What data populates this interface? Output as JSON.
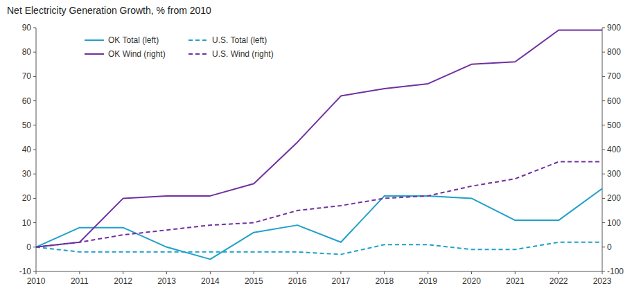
{
  "chart_data": {
    "type": "line",
    "title": "Net Electricity Generation Growth, % from 2010",
    "x": [
      2010,
      2011,
      2012,
      2013,
      2014,
      2015,
      2016,
      2017,
      2018,
      2019,
      2020,
      2021,
      2022,
      2023
    ],
    "xlim": [
      2010,
      2023
    ],
    "xticks": [
      2010,
      2011,
      2012,
      2013,
      2014,
      2015,
      2016,
      2017,
      2018,
      2019,
      2020,
      2021,
      2022,
      2023
    ],
    "series": [
      {
        "name": "OK Total (left)",
        "color": "#1fa0c8",
        "line_style": "solid",
        "axis": "y",
        "values": [
          0,
          8,
          8,
          0,
          -5,
          6,
          9,
          2,
          21,
          21,
          20,
          11,
          11,
          24
        ]
      },
      {
        "name": "U.S. Total (left)",
        "color": "#1fa0c8",
        "line_style": "dashed",
        "axis": "y",
        "values": [
          0,
          -2,
          -2,
          -2,
          -2,
          -2,
          -2,
          -3,
          1,
          1,
          -1,
          -1,
          2,
          2
        ]
      },
      {
        "name": "OK Wind (right)",
        "color": "#7030a0",
        "line_style": "solid",
        "axis": "y2",
        "values": [
          0,
          20,
          200,
          210,
          210,
          260,
          430,
          620,
          650,
          670,
          750,
          760,
          890,
          890
        ]
      },
      {
        "name": "U.S. Wind (right)",
        "color": "#7030a0",
        "line_style": "dashed",
        "axis": "y2",
        "values": [
          0,
          20,
          50,
          70,
          90,
          100,
          150,
          170,
          200,
          210,
          250,
          280,
          350,
          350
        ]
      }
    ],
    "ylim": [
      -10,
      90
    ],
    "yticks": [
      -10,
      0,
      10,
      20,
      30,
      40,
      50,
      60,
      70,
      80,
      90
    ],
    "y2lim": [
      -100,
      900
    ],
    "y2ticks": [
      -100,
      0,
      100,
      200,
      300,
      400,
      500,
      600,
      700,
      800,
      900
    ],
    "legend": "upper left",
    "grid": false
  }
}
